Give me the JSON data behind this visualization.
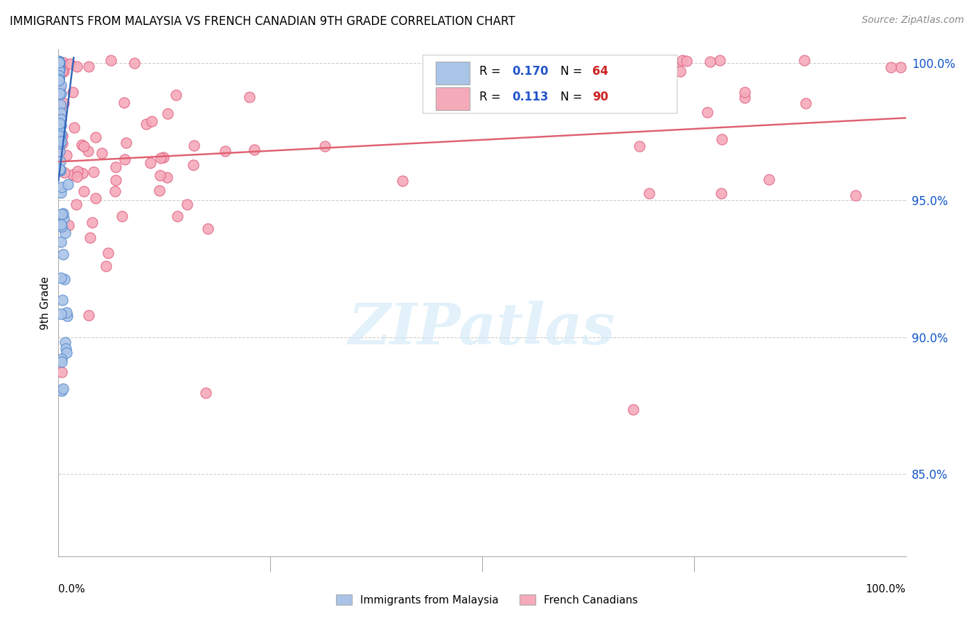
{
  "title": "IMMIGRANTS FROM MALAYSIA VS FRENCH CANADIAN 9TH GRADE CORRELATION CHART",
  "source": "Source: ZipAtlas.com",
  "ylabel": "9th Grade",
  "watermark": "ZIPatlas",
  "malaysia_color": "#aac4e8",
  "malaysia_edge_color": "#5588cc",
  "french_color": "#f5aaba",
  "french_edge_color": "#e06080",
  "malaysia_line_color": "#3366bb",
  "french_line_color": "#e06070",
  "legend_R_color": "#2255cc",
  "legend_N_color": "#cc2222",
  "malaysia_R": "0.170",
  "malaysia_N": "64",
  "french_R": "0.113",
  "french_N": "90",
  "xlim": [
    0.0,
    1.0
  ],
  "ylim": [
    0.82,
    1.005
  ],
  "ytick_positions": [
    0.85,
    0.9,
    0.95,
    1.0
  ],
  "ytick_labels": [
    "85.0%",
    "90.0%",
    "95.0%",
    "100.0%"
  ],
  "grid_color": "#cccccc",
  "background_color": "#ffffff",
  "title_fontsize": 12,
  "source_fontsize": 10,
  "marker_size": 120,
  "blue_line_x": [
    0.0,
    0.018
  ],
  "blue_line_y": [
    0.957,
    1.002
  ],
  "pink_line_x": [
    0.0,
    1.0
  ],
  "pink_line_y": [
    0.964,
    0.98
  ]
}
